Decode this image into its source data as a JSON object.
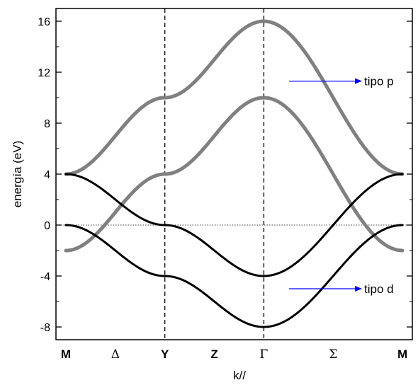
{
  "chart_data": {
    "type": "line",
    "xlabel": "k//",
    "ylabel": "energía (eV)",
    "ylim": [
      -9,
      17
    ],
    "yticks": [
      -8,
      -4,
      0,
      4,
      8,
      12,
      16
    ],
    "ytick_labels": [
      "-8",
      "-4",
      "0",
      "4",
      "8",
      "12",
      "16"
    ],
    "kpoints": [
      {
        "label": "M",
        "position": 0,
        "style": "bold"
      },
      {
        "label": "Δ",
        "position": 0.5,
        "style": "greek"
      },
      {
        "label": "Y",
        "position": 1,
        "style": "bold"
      },
      {
        "label": "Z",
        "position": 1.5,
        "style": "bold"
      },
      {
        "label": "Γ",
        "position": 2,
        "style": "greek"
      },
      {
        "label": "Σ",
        "position": 2.7,
        "style": "greek"
      },
      {
        "label": "M",
        "position": 3.4,
        "style": "bold"
      }
    ],
    "xlim": [
      -0.1,
      3.5
    ],
    "vlines": [
      1,
      2
    ],
    "hline": 0,
    "series": [
      {
        "group": "p",
        "color": "#808080",
        "segments": [
          [
            -2,
            4
          ],
          [
            4,
            10
          ],
          [
            10,
            -2
          ]
        ]
      },
      {
        "group": "p",
        "color": "#808080",
        "segments": [
          [
            4,
            10
          ],
          [
            10,
            16
          ],
          [
            16,
            4
          ]
        ]
      },
      {
        "group": "d",
        "color": "#000000",
        "segments": [
          [
            0,
            -4
          ],
          [
            -4,
            -8
          ],
          [
            -8,
            0
          ]
        ]
      },
      {
        "group": "d",
        "color": "#000000",
        "segments": [
          [
            4,
            0
          ],
          [
            0,
            -4
          ],
          [
            -4,
            4
          ]
        ]
      }
    ],
    "annotations": [
      {
        "text": "tipo p",
        "y": 11.3,
        "arrow_color": "#0000ff"
      },
      {
        "text": "tipo d",
        "y": -5.0,
        "arrow_color": "#0000ff"
      }
    ]
  },
  "colors": {
    "p_band": "#808080",
    "d_band": "#000000",
    "arrow": "#0000ff"
  }
}
